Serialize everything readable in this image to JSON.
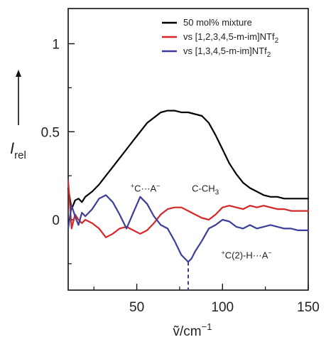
{
  "chart_data": {
    "type": "line",
    "xlabel": "ṽ/cm",
    "xlabel_sup": "−1",
    "ylabel": "I",
    "ylabel_sub": "rel",
    "xlim": [
      10,
      150
    ],
    "ylim": [
      -0.4,
      1.2
    ],
    "xticks": [
      50,
      100,
      150
    ],
    "xtick_labels": [
      "50",
      "100",
      "150"
    ],
    "yticks": [
      0,
      0.5,
      1
    ],
    "ytick_labels": [
      "0",
      "0.5",
      "1"
    ],
    "minor_xticks": [
      25,
      75,
      125
    ],
    "grid": false,
    "legend_position": "top-right",
    "series": [
      {
        "name": "50 mol% mixture",
        "color": "#000000",
        "x": [
          10,
          12,
          14,
          16,
          18,
          20,
          24,
          28,
          32,
          36,
          40,
          44,
          48,
          52,
          56,
          60,
          64,
          68,
          72,
          76,
          80,
          84,
          88,
          92,
          96,
          100,
          104,
          108,
          112,
          116,
          120,
          124,
          128,
          132,
          136,
          140,
          144,
          148,
          150
        ],
        "y": [
          0.18,
          0.06,
          0.11,
          0.12,
          0.1,
          0.13,
          0.16,
          0.2,
          0.25,
          0.3,
          0.35,
          0.4,
          0.45,
          0.5,
          0.55,
          0.58,
          0.61,
          0.62,
          0.62,
          0.61,
          0.61,
          0.6,
          0.59,
          0.55,
          0.48,
          0.4,
          0.32,
          0.26,
          0.21,
          0.18,
          0.16,
          0.14,
          0.13,
          0.13,
          0.12,
          0.12,
          0.12,
          0.12,
          0.12
        ]
      },
      {
        "name": "vs [1,2,3,4,5-m-im]NTf",
        "name_sub": "2",
        "color": "#d62728",
        "x": [
          10,
          12,
          14,
          16,
          18,
          20,
          24,
          28,
          32,
          36,
          40,
          44,
          48,
          52,
          56,
          60,
          64,
          68,
          72,
          76,
          80,
          84,
          88,
          92,
          96,
          100,
          104,
          108,
          112,
          116,
          120,
          124,
          128,
          132,
          136,
          140,
          144,
          148,
          150
        ],
        "y": [
          0.22,
          -0.05,
          0.03,
          0.0,
          -0.02,
          0.0,
          -0.02,
          -0.05,
          -0.1,
          -0.08,
          -0.05,
          -0.04,
          -0.06,
          -0.08,
          -0.06,
          -0.02,
          0.03,
          0.06,
          0.07,
          0.07,
          0.05,
          0.03,
          0.01,
          0.0,
          0.03,
          0.07,
          0.08,
          0.07,
          0.06,
          0.08,
          0.07,
          0.08,
          0.07,
          0.06,
          0.06,
          0.05,
          0.05,
          0.05,
          0.05
        ]
      },
      {
        "name": "vs [1,3,4,5-m-im]NTf",
        "name_sub": "2",
        "color": "#3b3f99",
        "x": [
          10,
          12,
          14,
          16,
          18,
          20,
          24,
          28,
          32,
          36,
          40,
          44,
          48,
          52,
          56,
          60,
          64,
          68,
          72,
          76,
          80,
          82,
          84,
          88,
          92,
          96,
          100,
          104,
          108,
          112,
          116,
          120,
          124,
          128,
          132,
          136,
          140,
          144,
          148,
          150
        ],
        "y": [
          -0.05,
          0.08,
          0.02,
          -0.03,
          0.04,
          0.02,
          0.06,
          0.12,
          0.14,
          0.1,
          0.03,
          -0.05,
          0.04,
          0.13,
          0.09,
          0.02,
          -0.03,
          -0.05,
          -0.12,
          -0.2,
          -0.24,
          -0.22,
          -0.18,
          -0.12,
          -0.05,
          -0.03,
          0.0,
          -0.01,
          -0.04,
          -0.05,
          -0.03,
          -0.05,
          -0.04,
          -0.03,
          -0.04,
          -0.05,
          -0.05,
          -0.06,
          -0.06,
          -0.06
        ]
      }
    ],
    "annotations": [
      {
        "text": "C···A",
        "sup": "+",
        "sup_suffix": "−",
        "x": 55,
        "y": 0.16
      },
      {
        "text": "C-CH",
        "sub": "3",
        "x": 90,
        "y": 0.16
      },
      {
        "text": "C(2)-H···A",
        "sup": "+",
        "sup_suffix": "−",
        "x": 114,
        "y": -0.22
      }
    ],
    "marker_line": {
      "x": 80,
      "y_from": -0.24,
      "y_to": -0.4,
      "style": "dashed",
      "color": "#3b3f99"
    }
  }
}
